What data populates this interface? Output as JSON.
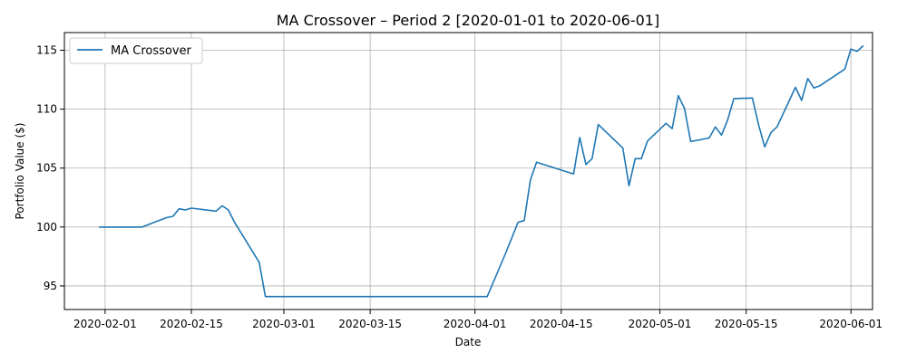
{
  "chart_data": {
    "type": "line",
    "title": "MA Crossover – Period 2 [2020-01-01 to 2020-06-01]",
    "xlabel": "Date",
    "ylabel": "Portfolio Value ($)",
    "xlim": [
      "2020-01-28",
      "2020-06-03"
    ],
    "ylim": [
      93.0,
      116.5
    ],
    "x_ticks": [
      "2020-02-01",
      "2020-02-15",
      "2020-03-01",
      "2020-03-15",
      "2020-04-01",
      "2020-04-15",
      "2020-05-01",
      "2020-05-15",
      "2020-06-01"
    ],
    "y_ticks": [
      95,
      100,
      105,
      110,
      115
    ],
    "grid": true,
    "legend_position": "top-left",
    "colors": {
      "series": "#1f77b4",
      "grid": "#b0b0b0",
      "axis": "#000000"
    },
    "series": [
      {
        "name": "MA Crossover",
        "points": [
          [
            "2020-01-31",
            100.0
          ],
          [
            "2020-02-07",
            100.0
          ],
          [
            "2020-02-10",
            100.6
          ],
          [
            "2020-02-11",
            100.8
          ],
          [
            "2020-02-12",
            100.9
          ],
          [
            "2020-02-13",
            101.55
          ],
          [
            "2020-02-14",
            101.45
          ],
          [
            "2020-02-15",
            101.6
          ],
          [
            "2020-02-19",
            101.35
          ],
          [
            "2020-02-20",
            101.8
          ],
          [
            "2020-02-21",
            101.45
          ],
          [
            "2020-02-22",
            100.4
          ],
          [
            "2020-02-26",
            97.0
          ],
          [
            "2020-02-27",
            94.1
          ],
          [
            "2020-04-03",
            94.1
          ],
          [
            "2020-04-06",
            97.8
          ],
          [
            "2020-04-08",
            100.4
          ],
          [
            "2020-04-09",
            100.55
          ],
          [
            "2020-04-10",
            104.0
          ],
          [
            "2020-04-11",
            105.5
          ],
          [
            "2020-04-14",
            105.0
          ],
          [
            "2020-04-17",
            104.5
          ],
          [
            "2020-04-18",
            107.6
          ],
          [
            "2020-04-19",
            105.3
          ],
          [
            "2020-04-20",
            105.8
          ],
          [
            "2020-04-21",
            108.7
          ],
          [
            "2020-04-25",
            106.7
          ],
          [
            "2020-04-26",
            103.5
          ],
          [
            "2020-04-27",
            105.8
          ],
          [
            "2020-04-28",
            105.8
          ],
          [
            "2020-04-29",
            107.3
          ],
          [
            "2020-05-02",
            108.8
          ],
          [
            "2020-05-03",
            108.35
          ],
          [
            "2020-05-04",
            111.15
          ],
          [
            "2020-05-05",
            110.05
          ],
          [
            "2020-05-06",
            107.25
          ],
          [
            "2020-05-09",
            107.55
          ],
          [
            "2020-05-10",
            108.5
          ],
          [
            "2020-05-11",
            107.8
          ],
          [
            "2020-05-12",
            109.1
          ],
          [
            "2020-05-13",
            110.9
          ],
          [
            "2020-05-16",
            110.95
          ],
          [
            "2020-05-17",
            108.7
          ],
          [
            "2020-05-18",
            106.8
          ],
          [
            "2020-05-19",
            108.0
          ],
          [
            "2020-05-20",
            108.5
          ],
          [
            "2020-05-23",
            111.85
          ],
          [
            "2020-05-24",
            110.75
          ],
          [
            "2020-05-25",
            112.6
          ],
          [
            "2020-05-26",
            111.8
          ],
          [
            "2020-05-27",
            112.0
          ],
          [
            "2020-05-31",
            113.4
          ],
          [
            "2020-06-01",
            115.1
          ],
          [
            "2020-06-02",
            114.9
          ],
          [
            "2020-06-03",
            115.4
          ]
        ]
      }
    ]
  }
}
